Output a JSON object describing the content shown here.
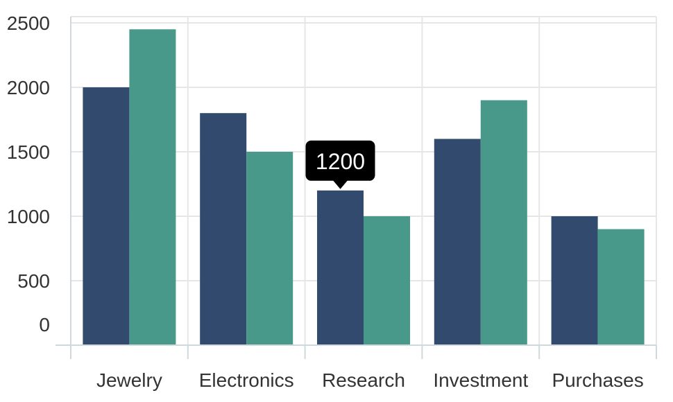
{
  "chart_data": {
    "type": "bar",
    "categories": [
      "Jewelry",
      "Electronics",
      "Research",
      "Investment",
      "Purchases"
    ],
    "series": [
      {
        "values": [
          2000,
          1800,
          1200,
          1600,
          1000
        ],
        "color": "#324a6d"
      },
      {
        "values": [
          2450,
          1500,
          1000,
          1900,
          900
        ],
        "color": "#48998a"
      }
    ],
    "y_ticks": [
      0,
      500,
      1000,
      1500,
      2000,
      2500
    ],
    "ylim": [
      0,
      2500
    ],
    "grid": true,
    "legend": "none"
  },
  "tooltip": {
    "text": "1200",
    "category": "Research",
    "series_index": 0
  }
}
